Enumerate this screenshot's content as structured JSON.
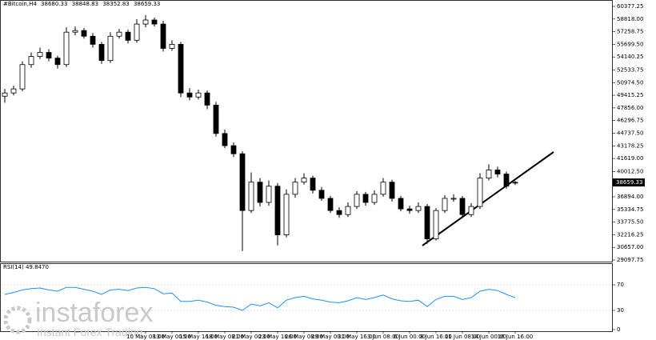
{
  "chart_data": [
    {
      "type": "candlestick",
      "title": "#Bitcoin,H4",
      "categories": [
        null,
        null,
        null,
        null,
        null,
        null,
        null,
        null,
        null,
        null,
        null,
        null,
        null,
        null,
        null,
        null,
        "10 May 08:00",
        null,
        null,
        "13 May 00:00",
        null,
        null,
        "15 May 16:00",
        null,
        null,
        "18 May 08:00",
        null,
        null,
        "21 May 00:00",
        null,
        null,
        "23 May 16:00",
        null,
        null,
        "26 May 08:00",
        null,
        null,
        "29 May 00:00",
        null,
        null,
        "31 May 16:00",
        null,
        null,
        "3 Jun 08:00",
        null,
        null,
        "6 Jun 00:00",
        null,
        null,
        "8 Jun 16:00",
        null,
        null,
        "11 Jun 08:00",
        null,
        null,
        "14 Jun 00:00",
        null,
        null,
        "16 Jun 16:00"
      ],
      "open": [
        49300,
        49700,
        50200,
        53200,
        54200,
        54700,
        54000,
        53200,
        57200,
        57400,
        56700,
        55700,
        53700,
        56700,
        57200,
        56200,
        58200,
        58700,
        58200,
        55200,
        55700,
        49700,
        49200,
        49700,
        48200,
        44700,
        43200,
        42200,
        35200,
        38700,
        36200,
        38200,
        32200,
        37200,
        38700,
        39200,
        37700,
        36700,
        35200,
        34700,
        35700,
        37200,
        36200,
        37200,
        38700,
        36700,
        35400,
        35200,
        35700,
        31700,
        35200,
        36700,
        36700,
        34700,
        35700,
        39200,
        40200,
        39700,
        38680.33
      ],
      "high": [
        50200,
        50600,
        53600,
        54700,
        55300,
        55100,
        54300,
        57800,
        57900,
        57700,
        57100,
        56000,
        57200,
        57600,
        57500,
        58800,
        59300,
        59000,
        58600,
        56200,
        56000,
        50300,
        50100,
        50000,
        48600,
        45200,
        43600,
        42500,
        39900,
        39200,
        38900,
        38600,
        37800,
        39200,
        39800,
        39500,
        38100,
        37000,
        35600,
        36200,
        37600,
        37500,
        37700,
        39200,
        39000,
        37000,
        35800,
        36200,
        36000,
        35500,
        37100,
        37200,
        37000,
        36100,
        39800,
        40900,
        40600,
        40000,
        38848.83
      ],
      "low": [
        48500,
        49400,
        49900,
        52800,
        53900,
        53600,
        52700,
        52900,
        56800,
        56400,
        55300,
        53300,
        53400,
        56400,
        55800,
        55900,
        57800,
        57900,
        54800,
        54900,
        49200,
        48800,
        48900,
        47700,
        44300,
        42900,
        41800,
        30200,
        34900,
        35700,
        35800,
        30900,
        31900,
        36800,
        38400,
        37300,
        36400,
        34900,
        34300,
        34400,
        35400,
        35800,
        35900,
        36900,
        36300,
        35100,
        34800,
        34900,
        31100,
        31500,
        34900,
        36300,
        34300,
        34400,
        35400,
        38900,
        39300,
        37900,
        38352.83
      ],
      "close": [
        49700,
        50200,
        53200,
        54200,
        54700,
        54000,
        53200,
        57200,
        57400,
        56700,
        55700,
        53700,
        56700,
        57200,
        56200,
        58200,
        58700,
        58200,
        55200,
        55700,
        49700,
        49200,
        49700,
        48200,
        44700,
        43200,
        42200,
        35200,
        38700,
        36200,
        38200,
        32200,
        37200,
        38700,
        39200,
        37700,
        36700,
        35200,
        34700,
        35700,
        37200,
        36200,
        37200,
        38700,
        36700,
        35400,
        35200,
        35700,
        31700,
        35200,
        36700,
        36700,
        34700,
        35700,
        39200,
        40200,
        39700,
        38200,
        38659.33
      ],
      "up_color": "#ffffff",
      "down_color": "#000000",
      "line_color": "#000000",
      "ylim": [
        29097.75,
        60377.25
      ],
      "yticks": [
        60377.25,
        {
          "value": 58818,
          "label": "58818.00"
        },
        57258.75,
        {
          "value": 55699.5,
          "label": "55699.50"
        },
        54140.25,
        52533.75,
        {
          "value": 50974.5,
          "label": "50974.50"
        },
        49415.25,
        {
          "value": 47856,
          "label": "47856.00"
        },
        46296.75,
        {
          "value": 44737.5,
          "label": "44737.50"
        },
        43178.25,
        {
          "value": 41619,
          "label": "41619.00"
        },
        {
          "value": 40012.5,
          "label": "40012.50"
        },
        {
          "value": 36894,
          "label": "36894.00"
        },
        35334.75,
        {
          "value": 33775.5,
          "label": "33775.50"
        },
        32216.25,
        {
          "value": 30657,
          "label": "30657.00"
        },
        29097.75
      ]
    },
    {
      "type": "line",
      "title": "RSI(14) 49.8470",
      "color": "#1e90ff",
      "values": [
        55,
        58,
        62,
        64,
        65,
        62,
        60,
        66,
        66,
        63,
        60,
        55,
        62,
        63,
        61,
        65,
        66,
        64,
        56,
        57,
        44,
        44,
        46,
        43,
        38,
        36,
        35,
        30,
        40,
        37,
        42,
        34,
        46,
        50,
        52,
        48,
        46,
        43,
        42,
        45,
        50,
        47,
        50,
        54,
        48,
        45,
        44,
        46,
        36,
        47,
        52,
        52,
        47,
        50,
        60,
        63,
        61,
        55,
        49.847
      ],
      "ylim": [
        0,
        100
      ],
      "yticks": [
        70,
        30,
        0
      ]
    }
  ],
  "watermark": {
    "brand": "instaforex",
    "tagline": "Instant Forex Trading"
  }
}
